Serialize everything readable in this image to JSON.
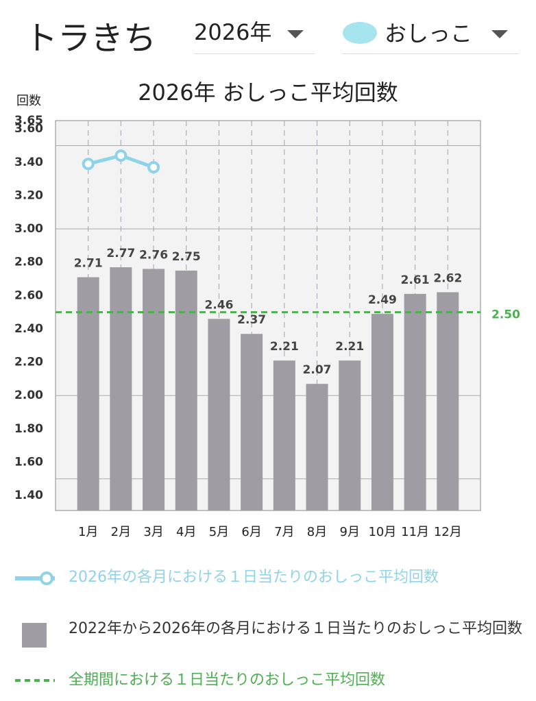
{
  "app_header": {
    "title": "トラきち",
    "year": "2026年",
    "category": "おしっこ"
  },
  "chart_data": {
    "type": "bar",
    "title": "2026年 おしっこ平均回数",
    "y_label": "回数",
    "categories": [
      "1月",
      "2月",
      "3月",
      "4月",
      "5月",
      "6月",
      "7月",
      "8月",
      "9月",
      "10月",
      "11月",
      "12月"
    ],
    "series": [
      {
        "name": "2026年の各月における１日当たりのおしっこ平均回数",
        "type": "line",
        "color": "#8fd3ea",
        "values": [
          3.39,
          3.44,
          3.37,
          null,
          null,
          null,
          null,
          null,
          null,
          null,
          null,
          null
        ]
      },
      {
        "name": "2022年から2026年の各月における１日当たりのおしっこ平均回数",
        "type": "bar",
        "color": "#a09ca3",
        "values": [
          2.71,
          2.77,
          2.76,
          2.75,
          2.46,
          2.37,
          2.21,
          2.07,
          2.21,
          2.49,
          2.61,
          2.62
        ]
      }
    ],
    "reference": {
      "name": "全期間における１日当たりのおしっこ平均回数",
      "value": 2.5,
      "value_label": "2.50",
      "color": "#4caf50"
    },
    "ylim": [
      1.31,
      3.65
    ],
    "yticks": [
      {
        "value": 1.4,
        "label": "1.40"
      },
      {
        "value": 1.6,
        "label": "1.60"
      },
      {
        "value": 1.8,
        "label": "1.80"
      },
      {
        "value": 2.0,
        "label": "2.00"
      },
      {
        "value": 2.2,
        "label": "2.20"
      },
      {
        "value": 2.4,
        "label": "2.40"
      },
      {
        "value": 2.6,
        "label": "2.60"
      },
      {
        "value": 2.8,
        "label": "2.80"
      },
      {
        "value": 3.0,
        "label": "3.00"
      },
      {
        "value": 3.2,
        "label": "3.20"
      },
      {
        "value": 3.4,
        "label": "3.40"
      },
      {
        "value": 3.6,
        "label": "3.60"
      },
      3.65
    ],
    "ygrid": [
      1.5,
      2.0,
      3.0,
      3.5
    ]
  }
}
